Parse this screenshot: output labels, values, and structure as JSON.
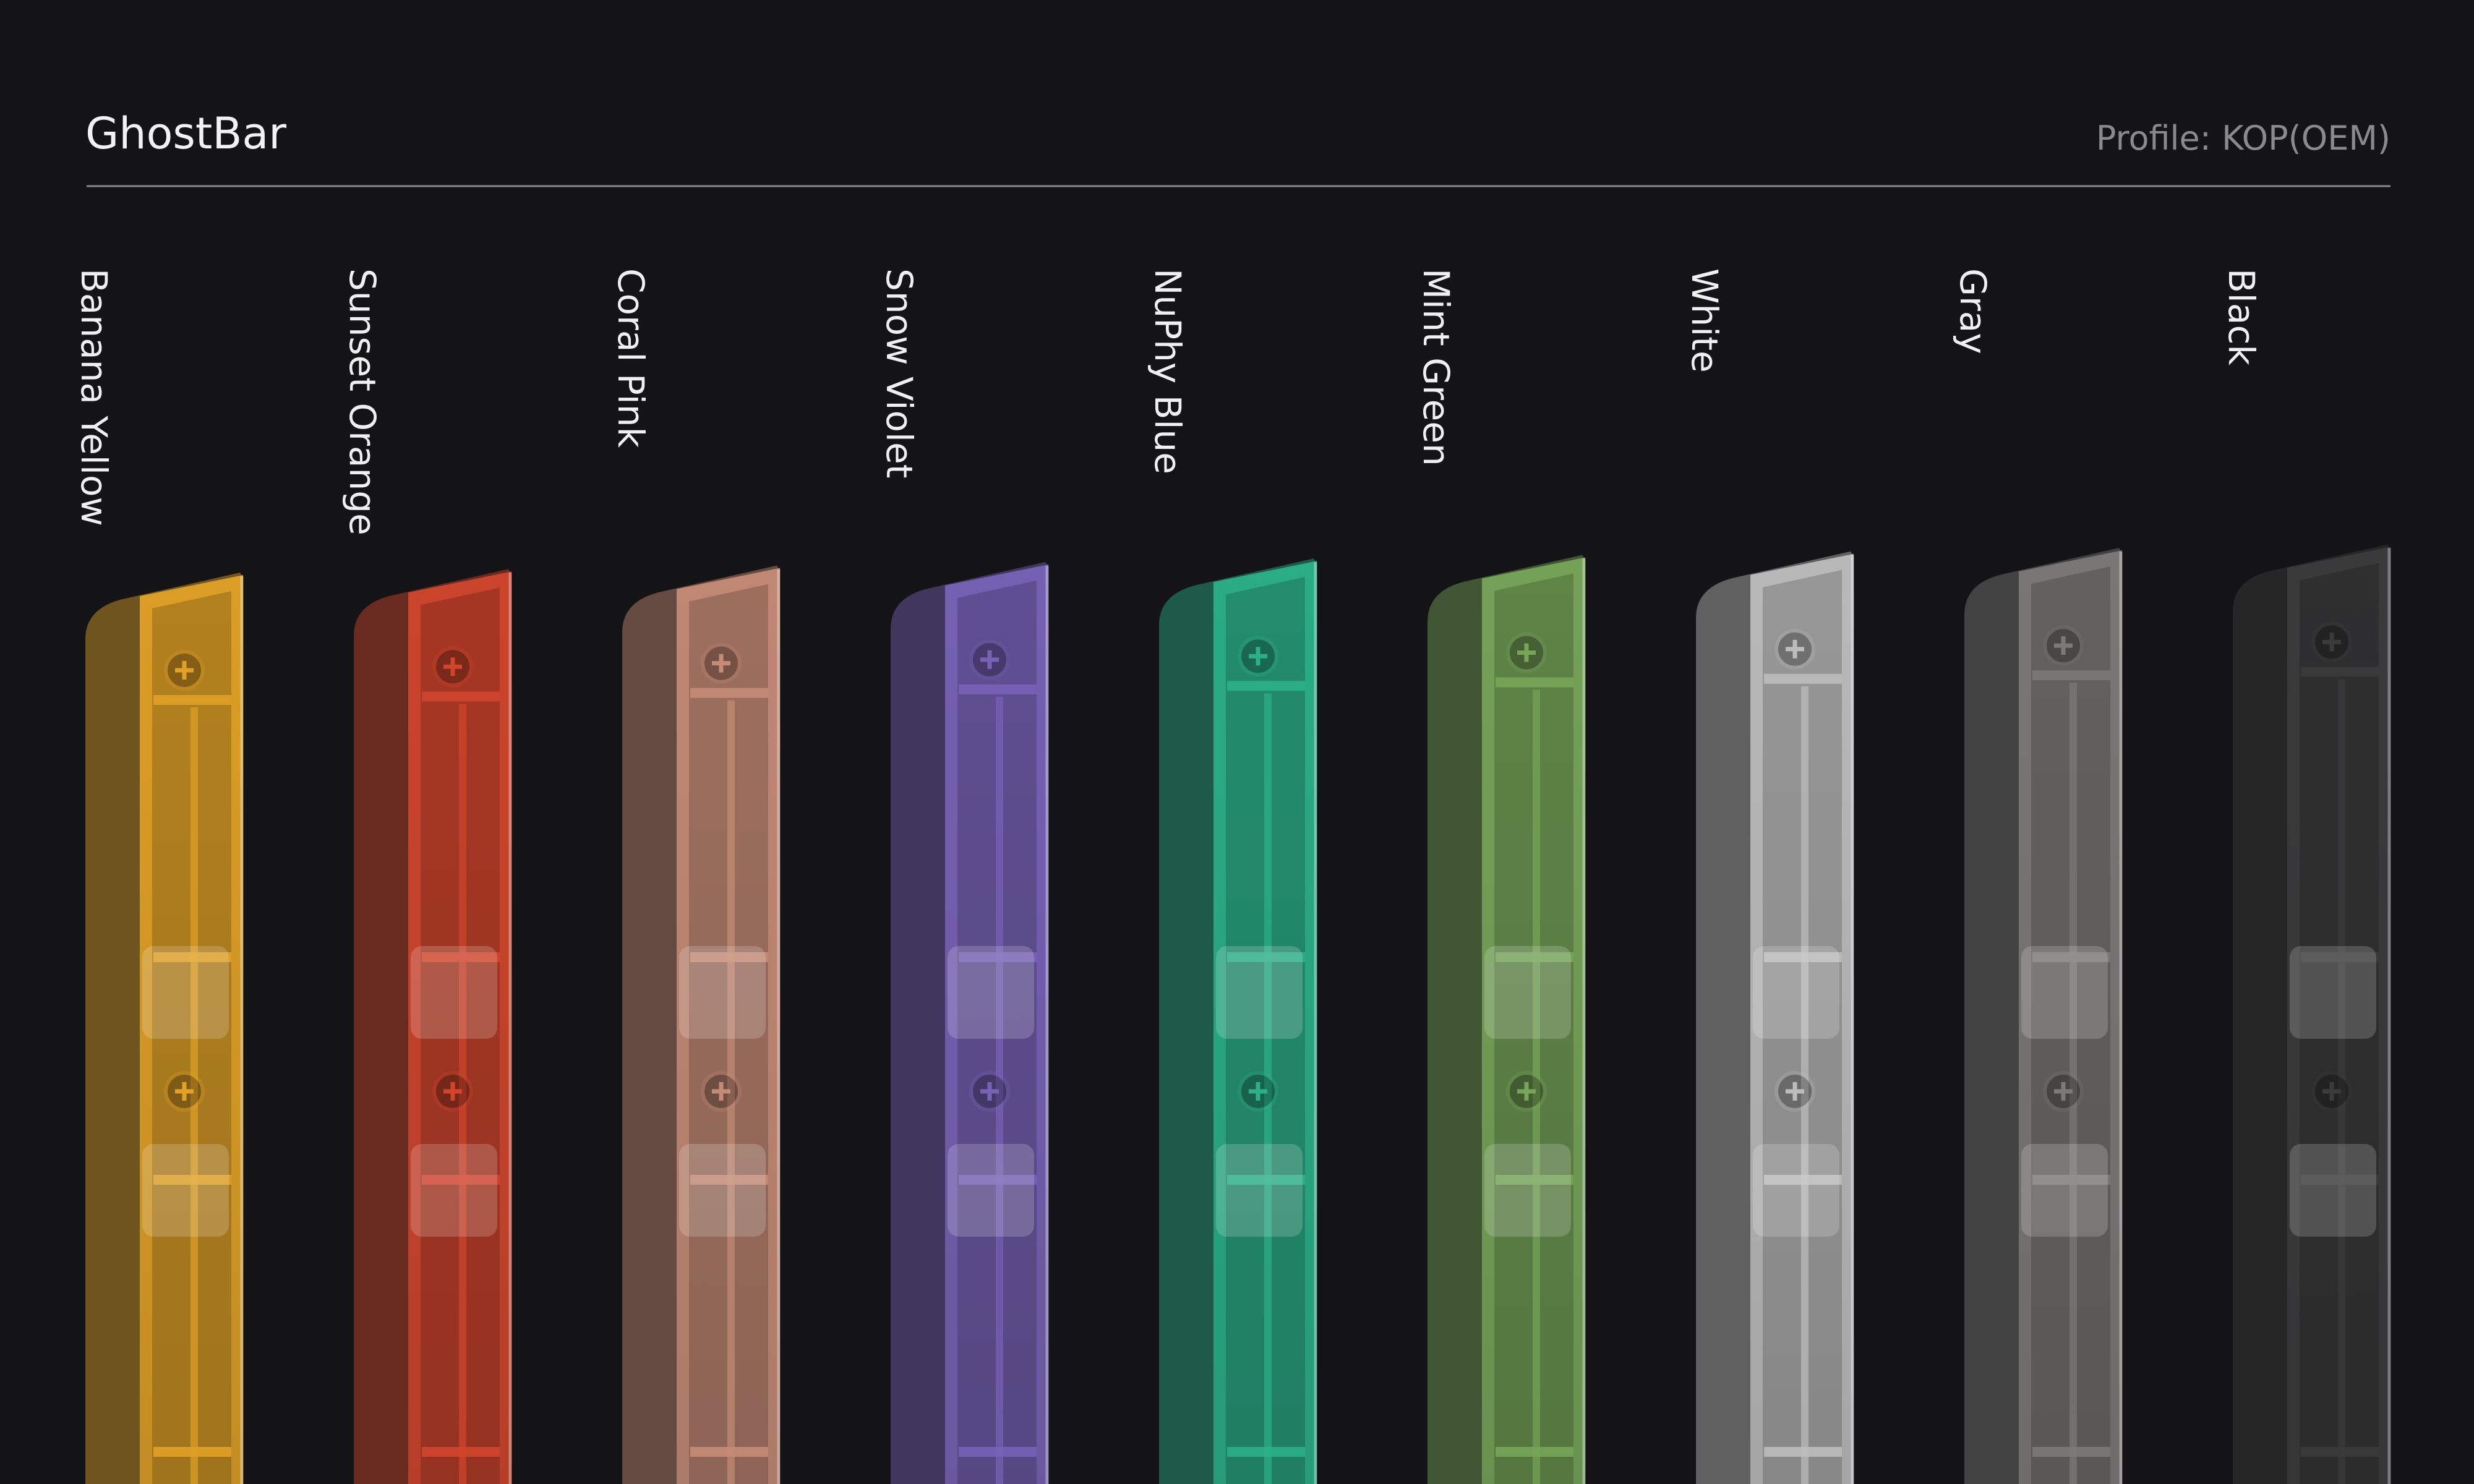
{
  "header": {
    "title": "GhostBar",
    "subtitle": "Profile: KOP(OEM)"
  },
  "variants": [
    {
      "label": "Banana Yellow"
    },
    {
      "label": "Sunset Orange"
    },
    {
      "label": "Coral Pink"
    },
    {
      "label": "Snow Violet"
    },
    {
      "label": "NuPhy Blue"
    },
    {
      "label": "Mint Green"
    },
    {
      "label": "White"
    },
    {
      "label": "Gray"
    },
    {
      "label": "Black"
    }
  ]
}
